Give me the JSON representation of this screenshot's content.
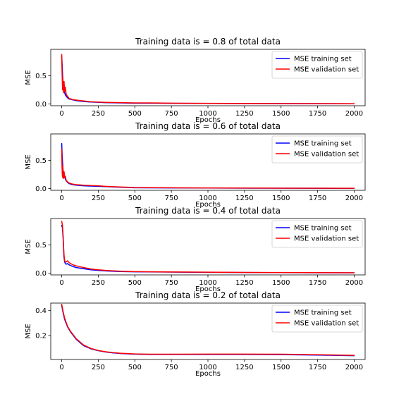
{
  "chart_data": [
    {
      "type": "line",
      "title": "Training data is  = 0.8 of total data",
      "xlabel": "Epochs",
      "ylabel": "MSE",
      "xlim": [
        -75,
        2075
      ],
      "ylim": [
        -0.03,
        0.97
      ],
      "xticks": [
        0,
        250,
        500,
        750,
        1000,
        1250,
        1500,
        1750,
        2000
      ],
      "xtick_labels": [
        "0",
        "250",
        "500",
        "750",
        "1000",
        "1250",
        "1500",
        "1750",
        "2000"
      ],
      "yticks": [
        0.0,
        0.5
      ],
      "ytick_labels": [
        "0.0",
        "0.5"
      ],
      "legend": "top-right",
      "grid": false,
      "series": [
        {
          "name": "MSE training set",
          "color": "#0000ff",
          "x": [
            0,
            3,
            6,
            10,
            15,
            20,
            25,
            30,
            40,
            50,
            75,
            100,
            150,
            200,
            300,
            400,
            500,
            600,
            750,
            1000,
            1250,
            1500,
            1750,
            2000
          ],
          "y": [
            0.85,
            0.7,
            0.5,
            0.35,
            0.3,
            0.2,
            0.16,
            0.14,
            0.11,
            0.09,
            0.075,
            0.06,
            0.045,
            0.035,
            0.025,
            0.02,
            0.015,
            0.015,
            0.012,
            0.01,
            0.008,
            0.007,
            0.006,
            0.005
          ]
        },
        {
          "name": "MSE validation set",
          "color": "#ff0000",
          "x": [
            0,
            2,
            4,
            6,
            8,
            10,
            13,
            16,
            20,
            25,
            30,
            35,
            40,
            50,
            75,
            100,
            150,
            200,
            300,
            400,
            500,
            600,
            750,
            1000,
            1250,
            1500,
            1750,
            2000
          ],
          "y": [
            0.88,
            0.6,
            0.4,
            0.25,
            0.45,
            0.3,
            0.2,
            0.4,
            0.22,
            0.3,
            0.18,
            0.15,
            0.14,
            0.1,
            0.08,
            0.07,
            0.055,
            0.04,
            0.03,
            0.025,
            0.02,
            0.02,
            0.015,
            0.012,
            0.01,
            0.008,
            0.007,
            0.006
          ]
        }
      ]
    },
    {
      "type": "line",
      "title": "Training data is  = 0.6 of total data",
      "xlabel": "Epochs",
      "ylabel": "MSE",
      "xlim": [
        -75,
        2075
      ],
      "ylim": [
        -0.03,
        0.97
      ],
      "xticks": [
        0,
        250,
        500,
        750,
        1000,
        1250,
        1500,
        1750,
        2000
      ],
      "xtick_labels": [
        "0",
        "250",
        "500",
        "750",
        "1000",
        "1250",
        "1500",
        "1750",
        "2000"
      ],
      "yticks": [
        0.0,
        0.5
      ],
      "ytick_labels": [
        "0.0",
        "0.5"
      ],
      "legend": "top-right",
      "grid": false,
      "series": [
        {
          "name": "MSE training set",
          "color": "#0000ff",
          "x": [
            0,
            3,
            6,
            10,
            15,
            20,
            25,
            30,
            40,
            50,
            75,
            100,
            150,
            200,
            250,
            300,
            400,
            500,
            750,
            1000,
            1250,
            1500,
            1750,
            2000
          ],
          "y": [
            0.8,
            0.6,
            0.45,
            0.3,
            0.25,
            0.2,
            0.17,
            0.14,
            0.11,
            0.09,
            0.07,
            0.06,
            0.05,
            0.045,
            0.04,
            0.035,
            0.025,
            0.015,
            0.012,
            0.01,
            0.008,
            0.007,
            0.006,
            0.005
          ]
        },
        {
          "name": "MSE validation set",
          "color": "#ff0000",
          "x": [
            0,
            2,
            4,
            6,
            8,
            10,
            13,
            16,
            20,
            25,
            30,
            40,
            50,
            75,
            100,
            150,
            200,
            250,
            300,
            400,
            500,
            750,
            1000,
            1250,
            1500,
            1750,
            2000
          ],
          "y": [
            0.7,
            0.4,
            0.25,
            0.2,
            0.4,
            0.25,
            0.18,
            0.3,
            0.2,
            0.22,
            0.15,
            0.12,
            0.1,
            0.08,
            0.07,
            0.06,
            0.055,
            0.05,
            0.04,
            0.03,
            0.02,
            0.015,
            0.012,
            0.01,
            0.008,
            0.007,
            0.006
          ]
        }
      ]
    },
    {
      "type": "line",
      "title": "Training data is  = 0.4 of total data",
      "xlabel": "Epochs",
      "ylabel": "MSE",
      "xlim": [
        -75,
        2075
      ],
      "ylim": [
        -0.03,
        0.97
      ],
      "xticks": [
        0,
        250,
        500,
        750,
        1000,
        1250,
        1500,
        1750,
        2000
      ],
      "xtick_labels": [
        "0",
        "250",
        "500",
        "750",
        "1000",
        "1250",
        "1500",
        "1750",
        "2000"
      ],
      "yticks": [
        0.0,
        0.5
      ],
      "ytick_labels": [
        "0.0",
        "0.5"
      ],
      "legend": "top-right",
      "grid": false,
      "series": [
        {
          "name": "MSE training set",
          "color": "#0000ff",
          "x": [
            0,
            5,
            10,
            15,
            20,
            25,
            30,
            40,
            50,
            75,
            100,
            150,
            200,
            250,
            300,
            400,
            500,
            750,
            1000,
            1250,
            1500,
            1750,
            2000
          ],
          "y": [
            0.85,
            0.8,
            0.6,
            0.3,
            0.2,
            0.17,
            0.16,
            0.17,
            0.15,
            0.12,
            0.1,
            0.08,
            0.06,
            0.05,
            0.04,
            0.03,
            0.025,
            0.02,
            0.015,
            0.012,
            0.01,
            0.008,
            0.007
          ]
        },
        {
          "name": "MSE validation set",
          "color": "#ff0000",
          "x": [
            0,
            5,
            10,
            15,
            20,
            25,
            30,
            40,
            50,
            75,
            100,
            150,
            200,
            250,
            300,
            400,
            500,
            750,
            1000,
            1250,
            1500,
            1750,
            2000
          ],
          "y": [
            0.92,
            0.85,
            0.65,
            0.35,
            0.22,
            0.2,
            0.2,
            0.22,
            0.19,
            0.15,
            0.13,
            0.1,
            0.075,
            0.06,
            0.05,
            0.035,
            0.028,
            0.022,
            0.018,
            0.014,
            0.012,
            0.01,
            0.008
          ]
        }
      ]
    },
    {
      "type": "line",
      "title": "Training data is  = 0.2 of total data",
      "xlabel": "Epochs",
      "ylabel": "MSE",
      "xlim": [
        -75,
        2075
      ],
      "ylim": [
        0.01,
        0.46
      ],
      "xticks": [
        0,
        250,
        500,
        750,
        1000,
        1250,
        1500,
        1750,
        2000
      ],
      "xtick_labels": [
        "0",
        "250",
        "500",
        "750",
        "1000",
        "1250",
        "1500",
        "1750",
        "2000"
      ],
      "yticks": [
        0.2,
        0.4
      ],
      "ytick_labels": [
        "0.2",
        "0.4"
      ],
      "legend": "top-right",
      "grid": false,
      "series": [
        {
          "name": "MSE training set",
          "color": "#0000ff",
          "x": [
            0,
            10,
            20,
            40,
            60,
            80,
            100,
            150,
            200,
            250,
            300,
            350,
            400,
            500,
            600,
            750,
            1000,
            1250,
            1500,
            1750,
            2000
          ],
          "y": [
            0.44,
            0.38,
            0.33,
            0.27,
            0.23,
            0.2,
            0.17,
            0.12,
            0.095,
            0.08,
            0.07,
            0.063,
            0.058,
            0.052,
            0.05,
            0.05,
            0.05,
            0.05,
            0.049,
            0.045,
            0.04
          ]
        },
        {
          "name": "MSE validation set",
          "color": "#ff0000",
          "x": [
            0,
            10,
            20,
            40,
            60,
            80,
            100,
            150,
            200,
            250,
            300,
            350,
            400,
            500,
            600,
            750,
            1000,
            1250,
            1500,
            1750,
            2000
          ],
          "y": [
            0.45,
            0.39,
            0.34,
            0.275,
            0.235,
            0.205,
            0.175,
            0.125,
            0.098,
            0.082,
            0.072,
            0.065,
            0.06,
            0.054,
            0.052,
            0.052,
            0.053,
            0.053,
            0.052,
            0.048,
            0.043
          ]
        }
      ]
    }
  ]
}
